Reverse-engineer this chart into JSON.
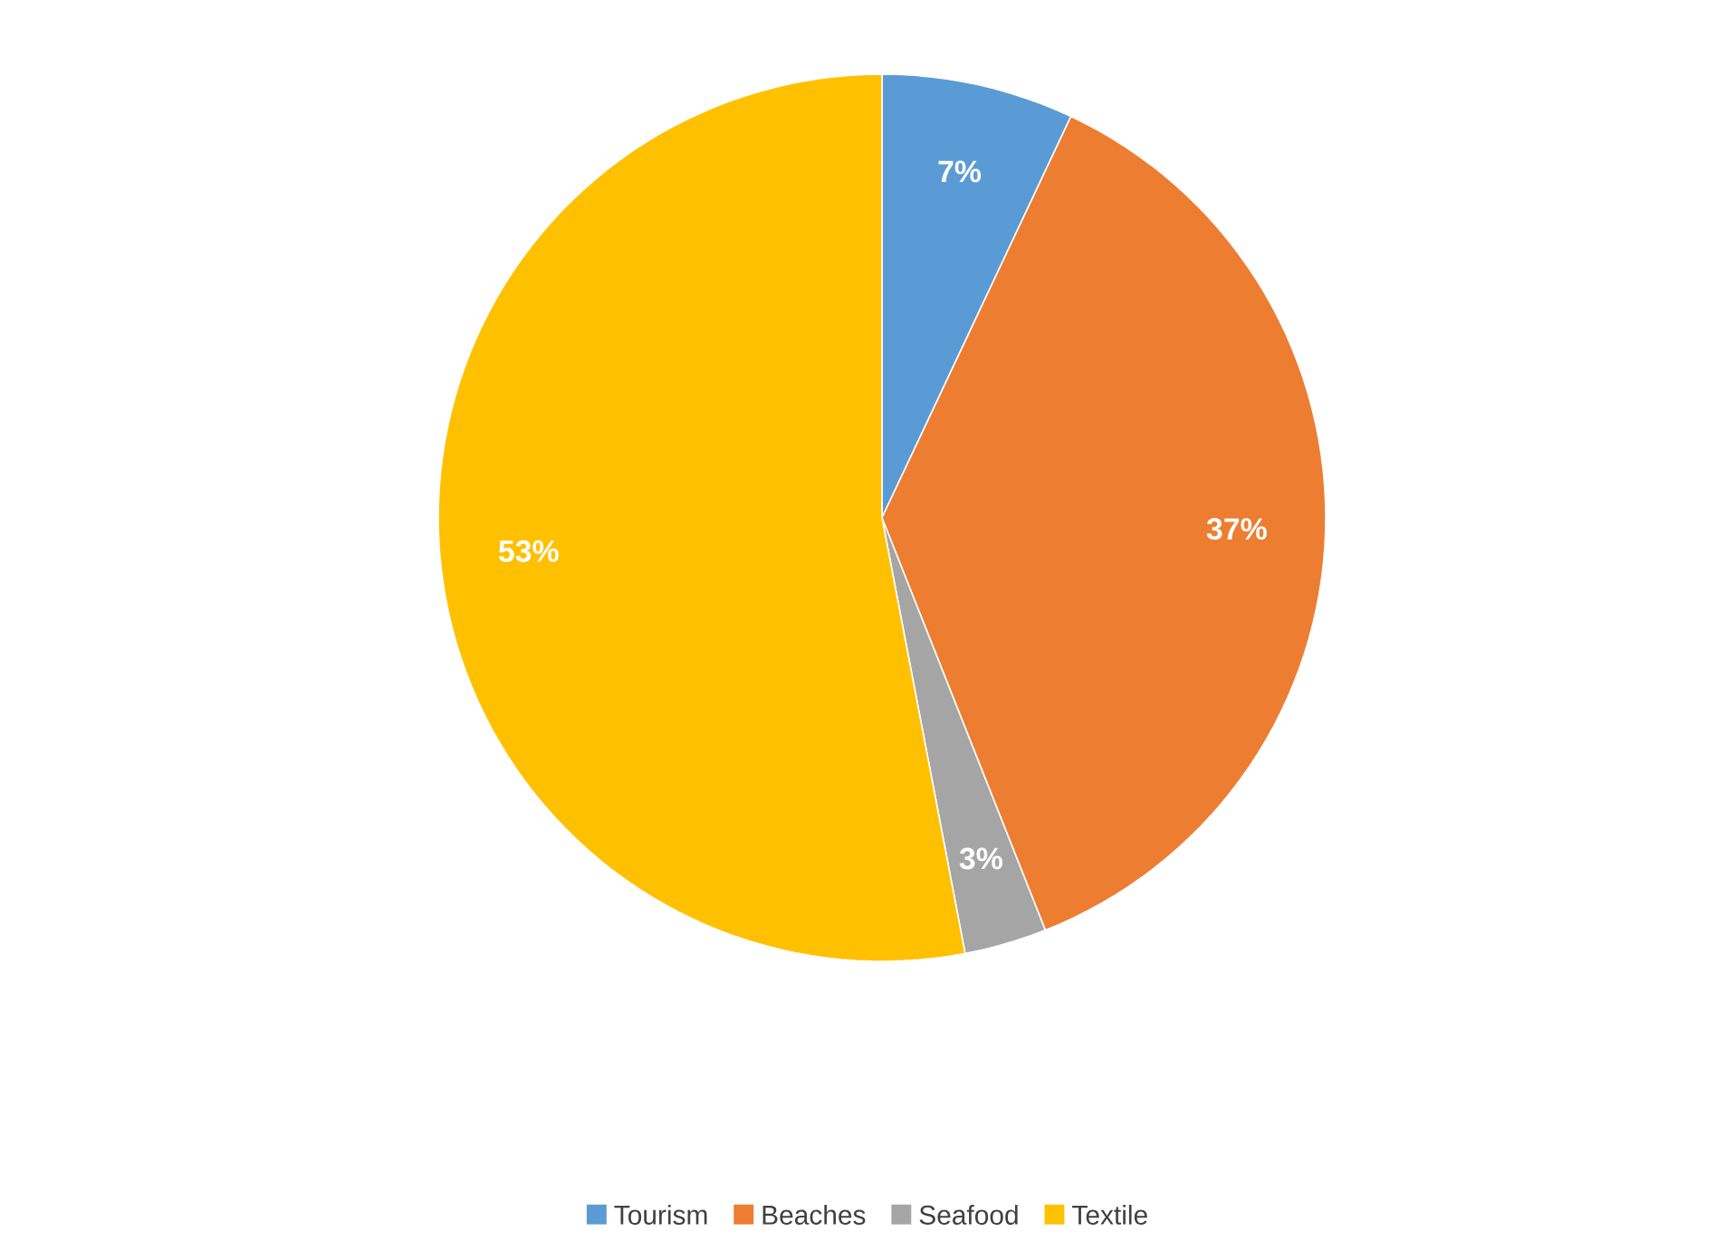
{
  "chart_data": {
    "type": "pie",
    "categories": [
      "Tourism",
      "Beaches",
      "Seafood",
      "Textile"
    ],
    "values": [
      7,
      37,
      3,
      53
    ],
    "value_labels": [
      "7%",
      "37%",
      "3%",
      "53%"
    ],
    "colors": [
      "#5b9bd5",
      "#ed7d31",
      "#a5a5a5",
      "#ffc000"
    ],
    "legend": "bottom"
  }
}
